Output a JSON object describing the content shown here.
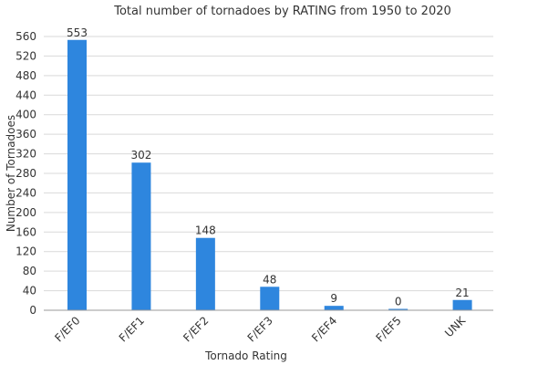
{
  "chart_data": {
    "type": "bar",
    "title": "Total number of tornadoes by RATING from 1950 to 2020",
    "xlabel": "Tornado Rating",
    "ylabel": "Number of Tornadoes",
    "categories": [
      "F/EF0",
      "F/EF1",
      "F/EF2",
      "F/EF3",
      "F/EF4",
      "F/EF5",
      "UNK"
    ],
    "values": [
      553,
      302,
      148,
      48,
      9,
      0,
      21
    ],
    "ylim": [
      0,
      560
    ],
    "yticks": [
      0,
      40,
      80,
      120,
      160,
      200,
      240,
      280,
      320,
      360,
      400,
      440,
      480,
      520,
      560
    ],
    "grid": true,
    "bar_color": "#2e86de",
    "data_labels": true
  }
}
